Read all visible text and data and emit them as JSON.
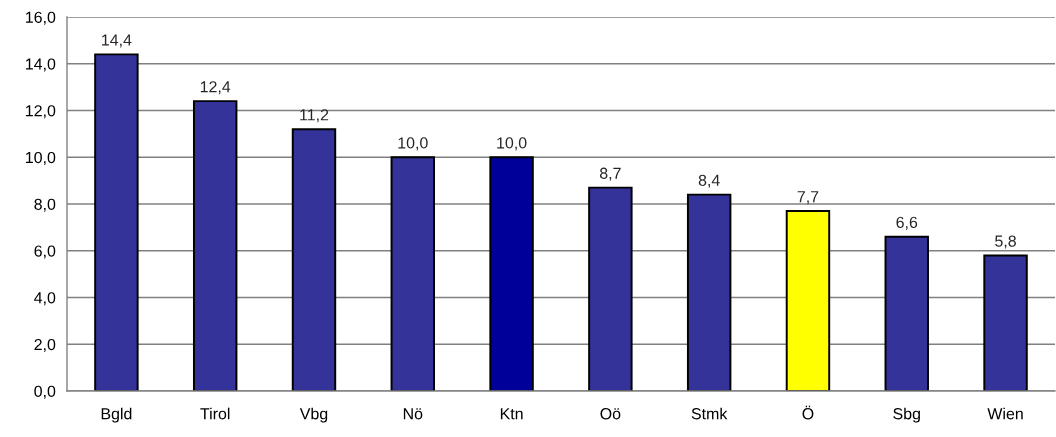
{
  "chart_data": {
    "type": "bar",
    "categories": [
      "Bgld",
      "Tirol",
      "Vbg",
      "Nö",
      "Ktn",
      "Oö",
      "Stmk",
      "Ö",
      "Sbg",
      "Wien"
    ],
    "values": [
      14.4,
      12.4,
      11.2,
      10.0,
      10.0,
      8.7,
      8.4,
      7.7,
      6.6,
      5.8
    ],
    "value_labels": [
      "14,4",
      "12,4",
      "11,2",
      "10,0",
      "10,0",
      "8,7",
      "8,4",
      "7,7",
      "6,6",
      "5,8"
    ],
    "colors": [
      "#333399",
      "#333399",
      "#333399",
      "#333399",
      "#000099",
      "#333399",
      "#333399",
      "#ffff00",
      "#333399",
      "#333399"
    ],
    "ylim": [
      0,
      16
    ],
    "yticks": [
      {
        "value": 0,
        "label": "0,0"
      },
      {
        "value": 2,
        "label": "2,0"
      },
      {
        "value": 4,
        "label": "4,0"
      },
      {
        "value": 6,
        "label": "6,0"
      },
      {
        "value": 8,
        "label": "8,0"
      },
      {
        "value": 10,
        "label": "10,0"
      },
      {
        "value": 12,
        "label": "12,0"
      },
      {
        "value": 14,
        "label": "14,0"
      },
      {
        "value": 16,
        "label": "16,0"
      }
    ],
    "grid": "y",
    "legend": false
  }
}
